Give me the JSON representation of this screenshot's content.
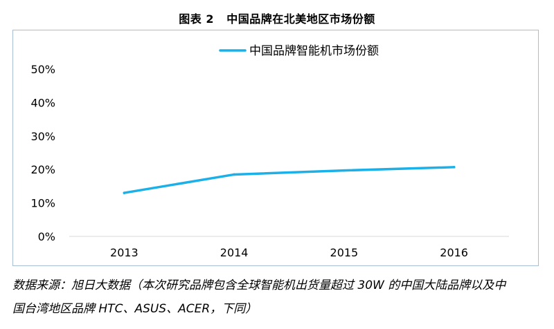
{
  "figure": {
    "label": "图表 2",
    "title": "中国品牌在北美地区市场份额"
  },
  "chart_data": {
    "type": "line",
    "x": [
      "2013",
      "2014",
      "2015",
      "2016"
    ],
    "series": [
      {
        "name": "中国品牌智能机市场份额",
        "values": [
          13,
          18.5,
          19.7,
          20.7
        ],
        "color": "#1cb0e8"
      }
    ],
    "yticks": [
      "0%",
      "10%",
      "20%",
      "30%",
      "40%",
      "50%"
    ],
    "ylim": [
      0,
      50
    ],
    "grid": false,
    "legend": "top"
  },
  "source": {
    "line1": "数据来源：旭日大数据（本次研究品牌包含全球智能机出货量超过 30W 的中国大陆品牌以及中",
    "line2": "国台湾地区品牌 HTC、ASUS、ACER，下同）"
  }
}
